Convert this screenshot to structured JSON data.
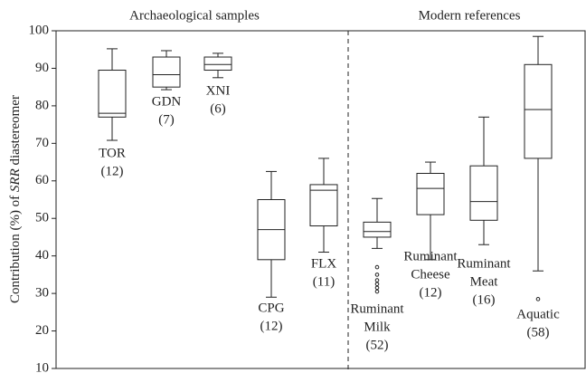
{
  "chart_data": {
    "type": "box",
    "group_titles": [
      "Archaeological samples",
      "Modern references"
    ],
    "ylabel": [
      "Contribution (%) of ",
      "SRR",
      " diastereomer"
    ],
    "ylim": [
      10,
      100
    ],
    "yticks": [
      10,
      20,
      30,
      40,
      50,
      60,
      70,
      80,
      90,
      100
    ],
    "boxes": [
      {
        "label": [
          "TOR",
          "(12)"
        ],
        "min": 70.8,
        "q1": 77,
        "median": 78,
        "q3": 89.5,
        "max": 95.2,
        "outliers": []
      },
      {
        "label": [
          "GDN",
          "(7)"
        ],
        "min": 84.3,
        "q1": 85,
        "median": 88.3,
        "q3": 93,
        "max": 94.7,
        "outliers": []
      },
      {
        "label": [
          "XNI",
          "(6)"
        ],
        "min": 87.5,
        "q1": 89.5,
        "median": 91,
        "q3": 93,
        "max": 94,
        "outliers": []
      },
      {
        "label": [
          "CPG",
          "(12)"
        ],
        "min": 29,
        "q1": 39,
        "median": 47,
        "q3": 55,
        "max": 62.5,
        "outliers": []
      },
      {
        "label": [
          "FLX",
          "(11)"
        ],
        "min": 41,
        "q1": 48,
        "median": 57.5,
        "q3": 59,
        "max": 66,
        "outliers": []
      },
      {
        "label": [
          "Ruminant",
          "Milk",
          "(52)"
        ],
        "min": 42,
        "q1": 45,
        "median": 46.5,
        "q3": 49,
        "max": 55.3,
        "outliers": [
          37,
          35,
          33.5,
          32.5,
          31.5,
          30.5
        ]
      },
      {
        "label": [
          "Ruminant",
          "Cheese",
          "(12)"
        ],
        "min": 39,
        "q1": 51,
        "median": 58,
        "q3": 62,
        "max": 65,
        "outliers": []
      },
      {
        "label": [
          "Ruminant",
          "Meat",
          "(16)"
        ],
        "min": 43,
        "q1": 49.5,
        "median": 54.5,
        "q3": 64,
        "max": 77,
        "outliers": []
      },
      {
        "label": [
          "Aquatic",
          "(58)"
        ],
        "min": 36,
        "q1": 66,
        "median": 79,
        "q3": 91,
        "max": 98.5,
        "outliers": [
          28.5
        ]
      }
    ]
  }
}
